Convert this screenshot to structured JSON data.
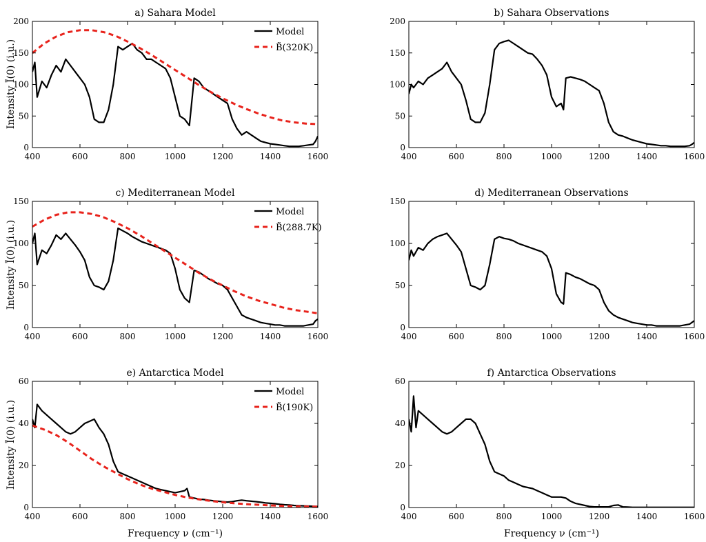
{
  "figure": {
    "xlabel": "Frequency ν (cm⁻¹)",
    "ylabel": "Intensity Ĩ(0) (i.u.)",
    "colors": {
      "model": "#000000",
      "blackbody": "#e8231c",
      "axis": "#000000"
    }
  },
  "chart_data": [
    {
      "id": "a",
      "type": "line",
      "title": "a) Sahara Model",
      "xlim": [
        400,
        1600
      ],
      "ylim": [
        0,
        200
      ],
      "xticks": [
        400,
        600,
        800,
        1000,
        1200,
        1400,
        1600
      ],
      "yticks": [
        0,
        50,
        100,
        150,
        200
      ],
      "legend": [
        "Model",
        "B̃(320K)"
      ],
      "series": [
        {
          "name": "Model",
          "style": "solid",
          "x": [
            400,
            410,
            420,
            440,
            460,
            480,
            500,
            520,
            540,
            560,
            580,
            600,
            620,
            640,
            660,
            680,
            700,
            720,
            740,
            760,
            780,
            800,
            820,
            840,
            860,
            880,
            900,
            920,
            940,
            960,
            980,
            1000,
            1020,
            1040,
            1060,
            1080,
            1100,
            1120,
            1140,
            1160,
            1180,
            1200,
            1220,
            1240,
            1260,
            1280,
            1300,
            1320,
            1340,
            1360,
            1380,
            1400,
            1420,
            1440,
            1460,
            1480,
            1500,
            1520,
            1540,
            1560,
            1580,
            1590,
            1600
          ],
          "y": [
            120,
            135,
            80,
            105,
            95,
            115,
            130,
            120,
            140,
            130,
            120,
            110,
            100,
            80,
            45,
            40,
            40,
            60,
            100,
            160,
            155,
            160,
            165,
            155,
            150,
            140,
            140,
            135,
            130,
            125,
            110,
            80,
            50,
            45,
            35,
            110,
            105,
            95,
            90,
            85,
            80,
            75,
            70,
            45,
            30,
            20,
            25,
            20,
            15,
            10,
            8,
            6,
            5,
            4,
            3,
            2,
            2,
            2,
            3,
            4,
            5,
            10,
            18
          ]
        },
        {
          "name": "B̃(320K)",
          "style": "dashed",
          "x": [
            400,
            450,
            500,
            550,
            600,
            650,
            700,
            750,
            800,
            850,
            900,
            950,
            1000,
            1050,
            1100,
            1150,
            1200,
            1250,
            1300,
            1350,
            1400,
            1450,
            1500,
            1550,
            1600
          ],
          "y": [
            150,
            165,
            176,
            183,
            186,
            186,
            183,
            177,
            168,
            158,
            147,
            135,
            123,
            111,
            99,
            88,
            78,
            69,
            61,
            54,
            48,
            43,
            40,
            38,
            37
          ]
        }
      ]
    },
    {
      "id": "b",
      "type": "line",
      "title": "b) Sahara Observations",
      "xlim": [
        400,
        1600
      ],
      "ylim": [
        0,
        200
      ],
      "xticks": [
        400,
        600,
        800,
        1000,
        1200,
        1400,
        1600
      ],
      "yticks": [
        0,
        50,
        100,
        150,
        200
      ],
      "series": [
        {
          "name": "Observations",
          "style": "solid",
          "x": [
            400,
            410,
            420,
            440,
            460,
            480,
            500,
            520,
            540,
            560,
            580,
            600,
            620,
            640,
            660,
            680,
            700,
            720,
            740,
            760,
            780,
            800,
            820,
            840,
            860,
            880,
            900,
            920,
            940,
            960,
            980,
            1000,
            1020,
            1040,
            1050,
            1060,
            1080,
            1100,
            1120,
            1140,
            1160,
            1180,
            1200,
            1220,
            1240,
            1260,
            1280,
            1300,
            1320,
            1340,
            1360,
            1380,
            1400,
            1420,
            1440,
            1460,
            1480,
            1500,
            1520,
            1540,
            1560,
            1580,
            1590,
            1600
          ],
          "y": [
            85,
            100,
            95,
            105,
            100,
            110,
            115,
            120,
            125,
            135,
            120,
            110,
            100,
            75,
            45,
            40,
            40,
            55,
            100,
            155,
            165,
            168,
            170,
            165,
            160,
            155,
            150,
            148,
            140,
            130,
            115,
            80,
            65,
            70,
            60,
            110,
            112,
            110,
            108,
            105,
            100,
            95,
            90,
            70,
            40,
            25,
            20,
            18,
            15,
            12,
            10,
            8,
            6,
            5,
            4,
            3,
            3,
            2,
            2,
            2,
            2,
            3,
            5,
            8
          ]
        }
      ]
    },
    {
      "id": "c",
      "type": "line",
      "title": "c) Mediterranean Model",
      "xlim": [
        400,
        1600
      ],
      "ylim": [
        0,
        150
      ],
      "xticks": [
        400,
        600,
        800,
        1000,
        1200,
        1400,
        1600
      ],
      "yticks": [
        0,
        50,
        100,
        150
      ],
      "legend": [
        "Model",
        "B̃(288.7K)"
      ],
      "series": [
        {
          "name": "Model",
          "style": "solid",
          "x": [
            400,
            410,
            420,
            440,
            460,
            480,
            500,
            520,
            540,
            560,
            580,
            600,
            620,
            640,
            660,
            680,
            700,
            720,
            740,
            760,
            780,
            800,
            820,
            840,
            860,
            880,
            900,
            920,
            940,
            960,
            980,
            1000,
            1020,
            1040,
            1060,
            1080,
            1100,
            1120,
            1140,
            1160,
            1180,
            1200,
            1220,
            1240,
            1260,
            1280,
            1300,
            1320,
            1340,
            1360,
            1380,
            1400,
            1420,
            1440,
            1460,
            1480,
            1500,
            1520,
            1540,
            1560,
            1580,
            1590,
            1600
          ],
          "y": [
            100,
            112,
            75,
            92,
            88,
            98,
            110,
            105,
            112,
            105,
            98,
            90,
            80,
            60,
            50,
            48,
            45,
            55,
            80,
            118,
            115,
            112,
            108,
            105,
            102,
            100,
            98,
            96,
            94,
            92,
            88,
            70,
            45,
            35,
            30,
            68,
            66,
            62,
            58,
            55,
            52,
            50,
            45,
            35,
            25,
            15,
            12,
            10,
            8,
            6,
            5,
            4,
            3,
            3,
            2,
            2,
            2,
            2,
            2,
            3,
            4,
            8,
            10
          ]
        },
        {
          "name": "B̃(288.7K)",
          "style": "dashed",
          "x": [
            400,
            450,
            500,
            550,
            600,
            650,
            700,
            750,
            800,
            850,
            900,
            950,
            1000,
            1050,
            1100,
            1150,
            1200,
            1250,
            1300,
            1350,
            1400,
            1450,
            1500,
            1550,
            1600
          ],
          "y": [
            120,
            128,
            134,
            137,
            137,
            135,
            131,
            125,
            118,
            110,
            101,
            92,
            83,
            74,
            65,
            57,
            50,
            43,
            37,
            32,
            28,
            24,
            21,
            19,
            17
          ]
        }
      ]
    },
    {
      "id": "d",
      "type": "line",
      "title": "d) Mediterranean Observations",
      "xlim": [
        400,
        1600
      ],
      "ylim": [
        0,
        150
      ],
      "xticks": [
        400,
        600,
        800,
        1000,
        1200,
        1400,
        1600
      ],
      "yticks": [
        0,
        50,
        100,
        150
      ],
      "series": [
        {
          "name": "Observations",
          "style": "solid",
          "x": [
            400,
            410,
            420,
            440,
            460,
            480,
            500,
            520,
            540,
            560,
            580,
            600,
            620,
            640,
            660,
            680,
            700,
            720,
            740,
            760,
            780,
            800,
            820,
            840,
            860,
            880,
            900,
            920,
            940,
            960,
            980,
            1000,
            1020,
            1040,
            1050,
            1060,
            1080,
            1100,
            1120,
            1140,
            1160,
            1180,
            1200,
            1220,
            1240,
            1260,
            1280,
            1300,
            1320,
            1340,
            1360,
            1380,
            1400,
            1420,
            1440,
            1460,
            1480,
            1500,
            1520,
            1540,
            1560,
            1580,
            1590,
            1600
          ],
          "y": [
            80,
            92,
            85,
            95,
            92,
            100,
            105,
            108,
            110,
            112,
            105,
            98,
            90,
            70,
            50,
            48,
            45,
            50,
            75,
            105,
            108,
            106,
            105,
            103,
            100,
            98,
            96,
            94,
            92,
            90,
            85,
            70,
            40,
            30,
            28,
            65,
            63,
            60,
            58,
            55,
            52,
            50,
            45,
            30,
            20,
            15,
            12,
            10,
            8,
            6,
            5,
            4,
            3,
            3,
            2,
            2,
            2,
            2,
            2,
            2,
            3,
            4,
            6,
            8
          ]
        }
      ]
    },
    {
      "id": "e",
      "type": "line",
      "title": "e) Antarctica Model",
      "xlim": [
        400,
        1600
      ],
      "ylim": [
        0,
        60
      ],
      "xticks": [
        400,
        600,
        800,
        1000,
        1200,
        1400,
        1600
      ],
      "yticks": [
        0,
        20,
        40,
        60
      ],
      "legend": [
        "Model",
        "B̃(190K)"
      ],
      "series": [
        {
          "name": "Model",
          "style": "solid",
          "x": [
            400,
            410,
            420,
            440,
            460,
            480,
            500,
            520,
            540,
            560,
            580,
            600,
            620,
            640,
            660,
            680,
            700,
            720,
            740,
            760,
            780,
            800,
            820,
            840,
            860,
            880,
            900,
            920,
            940,
            960,
            980,
            1000,
            1020,
            1040,
            1050,
            1060,
            1080,
            1100,
            1120,
            1140,
            1160,
            1180,
            1200,
            1220,
            1240,
            1260,
            1280,
            1300,
            1320,
            1340,
            1360,
            1380,
            1400,
            1420,
            1440,
            1460,
            1480,
            1500,
            1520,
            1540,
            1560,
            1580,
            1600
          ],
          "y": [
            42,
            38,
            49,
            46,
            44,
            42,
            40,
            38,
            36,
            35,
            36,
            38,
            40,
            41,
            42,
            38,
            35,
            30,
            22,
            17,
            16,
            15,
            14,
            13,
            12,
            11,
            10,
            9,
            8.5,
            8,
            7.5,
            7,
            7.5,
            8,
            9,
            5,
            4.5,
            4,
            3.8,
            3.5,
            3.2,
            3,
            2.8,
            2.6,
            2.8,
            3.2,
            3.5,
            3.2,
            3,
            2.8,
            2.5,
            2.2,
            2,
            1.8,
            1.5,
            1.3,
            1.2,
            1,
            0.9,
            0.8,
            0.7,
            0.6,
            0.5
          ]
        },
        {
          "name": "B̃(190K)",
          "style": "dashed",
          "x": [
            400,
            450,
            500,
            550,
            600,
            650,
            700,
            750,
            800,
            850,
            900,
            950,
            1000,
            1050,
            1100,
            1150,
            1200,
            1250,
            1300,
            1350,
            1400,
            1450,
            1500,
            1550,
            1600
          ],
          "y": [
            39,
            37,
            34.5,
            31,
            27,
            23,
            19.5,
            16.5,
            13.5,
            11,
            9,
            7.5,
            6,
            4.8,
            3.9,
            3.1,
            2.5,
            2,
            1.6,
            1.3,
            1,
            0.8,
            0.6,
            0.5,
            0.4
          ]
        }
      ]
    },
    {
      "id": "f",
      "type": "line",
      "title": "f) Antarctica Observations",
      "xlim": [
        400,
        1600
      ],
      "ylim": [
        0,
        60
      ],
      "xticks": [
        400,
        600,
        800,
        1000,
        1200,
        1400,
        1600
      ],
      "yticks": [
        0,
        20,
        40,
        60
      ],
      "series": [
        {
          "name": "Observations",
          "style": "solid",
          "x": [
            400,
            410,
            420,
            430,
            440,
            460,
            480,
            500,
            520,
            540,
            560,
            580,
            600,
            620,
            640,
            660,
            680,
            700,
            720,
            740,
            760,
            780,
            800,
            820,
            840,
            860,
            880,
            900,
            920,
            940,
            960,
            980,
            1000,
            1020,
            1040,
            1060,
            1080,
            1100,
            1120,
            1140,
            1160,
            1180,
            1200,
            1220,
            1240,
            1260,
            1280,
            1300,
            1320,
            1340,
            1360,
            1380,
            1400,
            1450,
            1500,
            1550,
            1600
          ],
          "y": [
            42,
            36,
            53,
            38,
            46,
            44,
            42,
            40,
            38,
            36,
            35,
            36,
            38,
            40,
            42,
            42,
            40,
            35,
            30,
            22,
            17,
            16,
            15,
            13,
            12,
            11,
            10,
            9.5,
            9,
            8,
            7,
            6,
            5,
            5,
            5,
            4.5,
            3,
            2,
            1.5,
            1,
            0.5,
            0.3,
            0.3,
            0.3,
            0.3,
            1,
            1.2,
            0.3,
            0.2,
            0.1,
            0.1,
            0.1,
            0.1,
            0.1,
            0.1,
            0.1,
            0.1
          ]
        }
      ]
    }
  ]
}
